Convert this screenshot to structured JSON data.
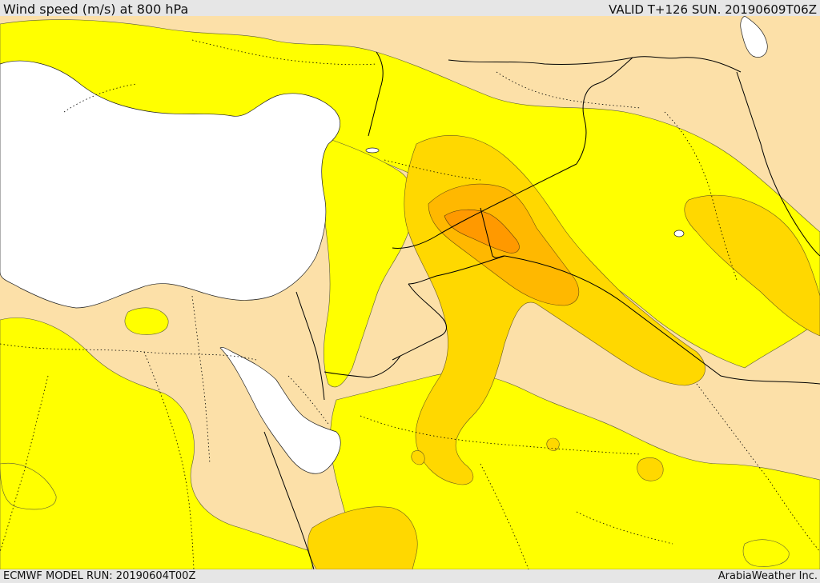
{
  "header": {
    "title": "Wind speed (m/s) at 800 hPa",
    "valid": "VALID T+126 SUN. 20190609T06Z"
  },
  "footer": {
    "run": "ECMWF MODEL RUN: 20190604T00Z",
    "credit": "ArabiaWeather Inc."
  },
  "map": {
    "field": "wind-speed",
    "pressure_level": "800 hPa",
    "colors": {
      "sea": "#ffffff",
      "level_1": "#fce0a8",
      "level_2": "#ffff00",
      "level_3": "#ffd800",
      "level_4": "#ffb800",
      "level_5": "#ff9900",
      "boundary": "#000000",
      "header_bg": "#e6e6e6"
    }
  }
}
